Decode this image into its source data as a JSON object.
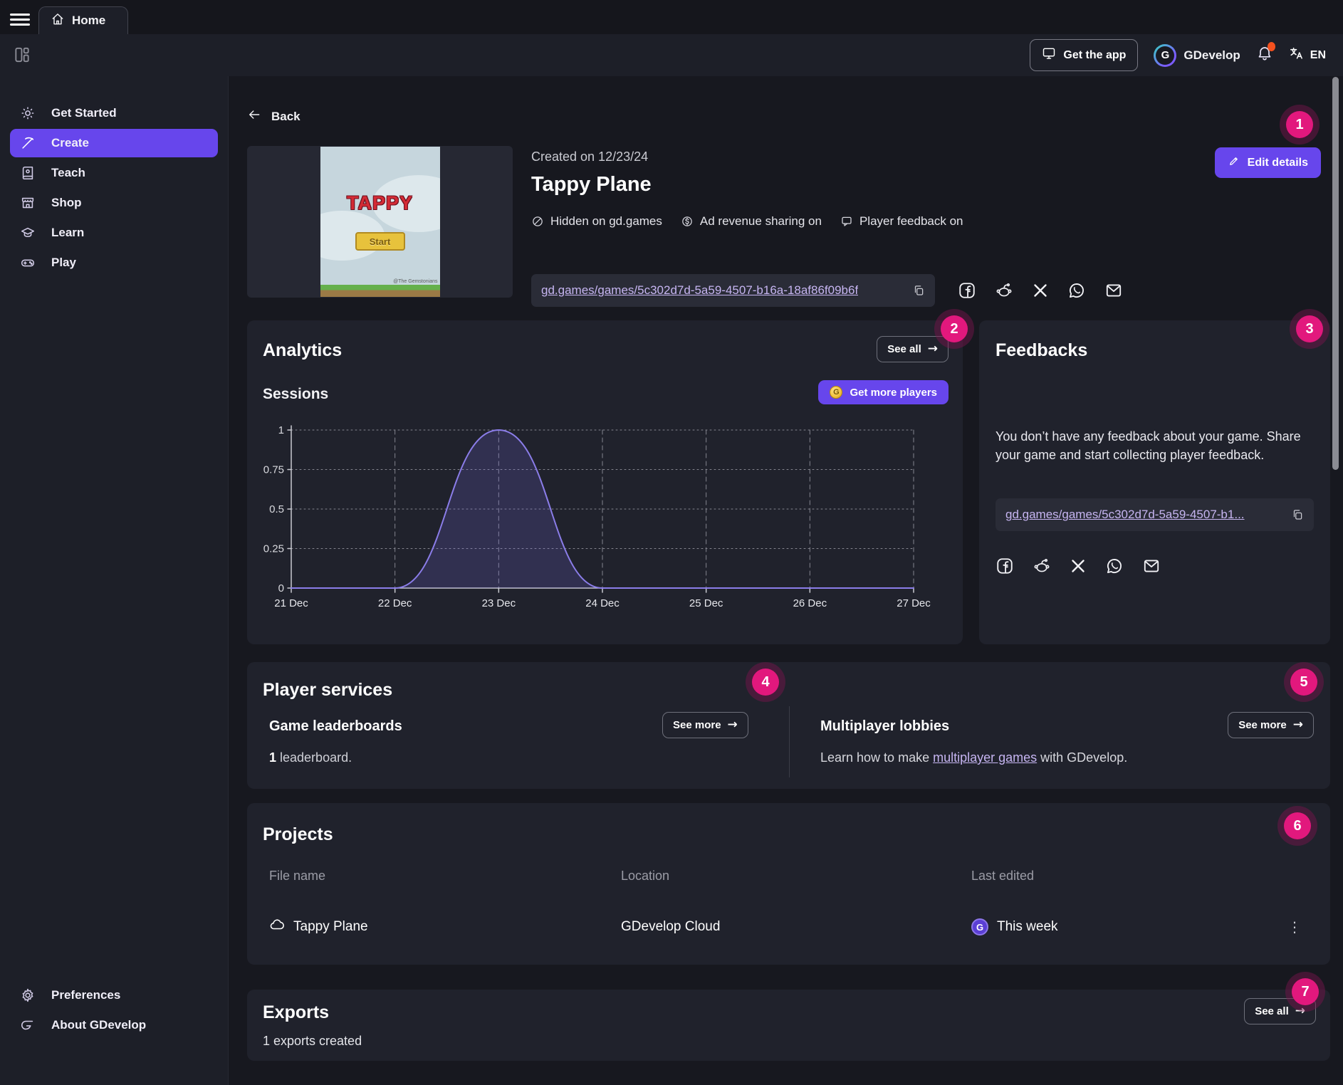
{
  "topbar": {
    "home_tab": "Home",
    "get_the_app": "Get the app",
    "brand": "GDevelop",
    "language": "EN"
  },
  "sidebar": {
    "items": [
      {
        "label": "Get Started",
        "icon": "sun-icon",
        "selected": false
      },
      {
        "label": "Create",
        "icon": "pickaxe-icon",
        "selected": true
      },
      {
        "label": "Teach",
        "icon": "book-icon",
        "selected": false
      },
      {
        "label": "Shop",
        "icon": "storefront-icon",
        "selected": false
      },
      {
        "label": "Learn",
        "icon": "graduation-cap-icon",
        "selected": false
      },
      {
        "label": "Play",
        "icon": "gamepad-icon",
        "selected": false
      }
    ],
    "footer_items": [
      {
        "label": "Preferences",
        "icon": "gear-icon"
      },
      {
        "label": "About GDevelop",
        "icon": "gdevelop-icon"
      }
    ]
  },
  "header": {
    "back_label": "Back",
    "created_on": "Created on 12/23/24",
    "game_title": "Tappy Plane",
    "statuses": [
      {
        "label": "Hidden on gd.games",
        "icon": "eye-off-icon"
      },
      {
        "label": "Ad revenue sharing on",
        "icon": "revenue-icon"
      },
      {
        "label": "Player feedback on",
        "icon": "feedback-bubble-icon"
      }
    ],
    "share_url": "gd.games/games/5c302d7d-5a59-4507-b16a-18af86f09b6f",
    "edit_details_label": "Edit details",
    "thumbnail": {
      "title": "TAPPY",
      "start_button": "Start",
      "credit": "@The Gemstonians"
    }
  },
  "analytics": {
    "title": "Analytics",
    "see_all_label": "See all",
    "sessions_label": "Sessions",
    "get_more_players_label": "Get more players"
  },
  "chart_data": {
    "type": "area",
    "title": "Sessions",
    "x": [
      "21 Dec",
      "22 Dec",
      "23 Dec",
      "24 Dec",
      "25 Dec",
      "26 Dec",
      "27 Dec"
    ],
    "values": [
      0,
      0,
      1,
      0,
      0,
      0,
      0
    ],
    "xlabel": "",
    "ylabel": "",
    "ylim": [
      0,
      1
    ],
    "yticks": [
      0,
      0.25,
      0.5,
      0.75,
      1
    ],
    "ytick_labels": [
      "0",
      "0.25",
      "0.5",
      "0.75",
      "1"
    ],
    "smooth": true,
    "grid": "dashed",
    "legend": "none",
    "line_color": "#8b7de9",
    "fill_color": "rgba(122,106,226,0.20)"
  },
  "feedbacks": {
    "title": "Feedbacks",
    "empty_message": "You don’t have any feedback about your game. Share your game and start collecting player feedback.",
    "share_url_truncated": "gd.games/games/5c302d7d-5a59-4507-b1..."
  },
  "share_icons": [
    "facebook-icon",
    "reddit-icon",
    "x-icon",
    "whatsapp-icon",
    "email-icon"
  ],
  "player_services": {
    "title": "Player services",
    "leaderboards": {
      "title": "Game leaderboards",
      "see_more_label": "See more",
      "count": "1",
      "count_suffix": " leaderboard."
    },
    "multiplayer": {
      "title": "Multiplayer lobbies",
      "see_more_label": "See more",
      "text_before_link": "Learn how to make ",
      "link_text": "multiplayer games",
      "text_after_link": " with GDevelop."
    }
  },
  "projects": {
    "title": "Projects",
    "columns": [
      "File name",
      "Location",
      "Last edited"
    ],
    "rows": [
      {
        "file_name": "Tappy Plane",
        "location": "GDevelop Cloud",
        "last_edited": "This week"
      }
    ]
  },
  "exports": {
    "title": "Exports",
    "see_all_label": "See all",
    "summary": "1 exports created"
  },
  "annotations": {
    "labels": [
      "1",
      "2",
      "3",
      "4",
      "5",
      "6",
      "7"
    ]
  },
  "colors": {
    "accent": "#6746ec",
    "annotation_pink": "#e2187d",
    "notification_dot": "#f4511e",
    "link": "#c6b5f1",
    "chart_line": "#8b7de9",
    "coin_gold": "#f2c23e"
  }
}
